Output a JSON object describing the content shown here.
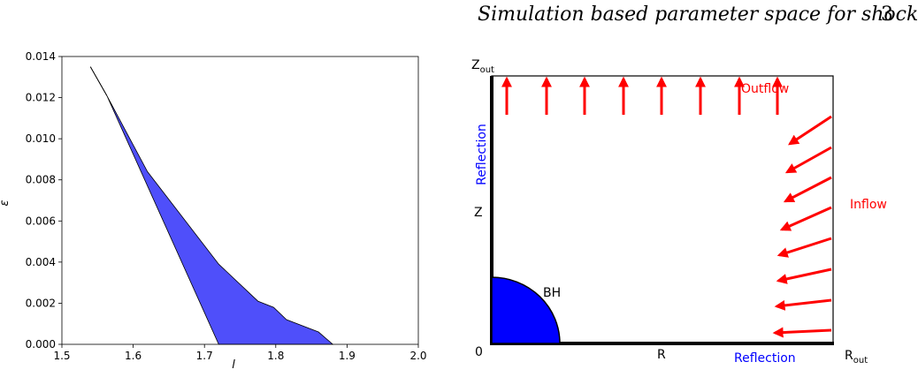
{
  "header": {
    "title": "Simulation based parameter space for shock",
    "page_number": "3"
  },
  "chart_data": {
    "type": "area",
    "title": "",
    "xlabel": "l",
    "ylabel": "ε",
    "xlim": [
      1.5,
      2.0
    ],
    "ylim": [
      0.0,
      0.014
    ],
    "xticks": [
      "1.5",
      "1.6",
      "1.7",
      "1.8",
      "1.9",
      "2.0"
    ],
    "yticks": [
      "0.000",
      "0.002",
      "0.004",
      "0.006",
      "0.008",
      "0.010",
      "0.012",
      "0.014"
    ],
    "fill_color": "#4f4ffa",
    "upper_boundary": [
      {
        "x": 1.54,
        "y": 0.0135
      },
      {
        "x": 1.563,
        "y": 0.0121
      },
      {
        "x": 1.62,
        "y": 0.0084
      },
      {
        "x": 1.72,
        "y": 0.0039
      },
      {
        "x": 1.775,
        "y": 0.0021
      },
      {
        "x": 1.797,
        "y": 0.0018
      },
      {
        "x": 1.815,
        "y": 0.0012
      },
      {
        "x": 1.86,
        "y": 0.0006
      },
      {
        "x": 1.88,
        "y": 0.0
      }
    ],
    "lower_boundary": [
      {
        "x": 1.54,
        "y": 0.0135
      },
      {
        "x": 1.563,
        "y": 0.0121
      },
      {
        "x": 1.72,
        "y": 0.0
      }
    ]
  },
  "diagram": {
    "top_label": "Z_out",
    "right_bottom_label": "R_out",
    "origin_label": "0",
    "r_axis_label": "R",
    "z_axis_label": "Z",
    "bh_label": "BH",
    "outflow_label": "Outflow",
    "inflow_label": "Inflow",
    "left_boundary_label": "Reflection",
    "bottom_boundary_label": "Reflection",
    "colors": {
      "outflow": "#ff0000",
      "inflow": "#ff0000",
      "reflection": "#0000ff",
      "black_hole": "#0000ff"
    }
  }
}
